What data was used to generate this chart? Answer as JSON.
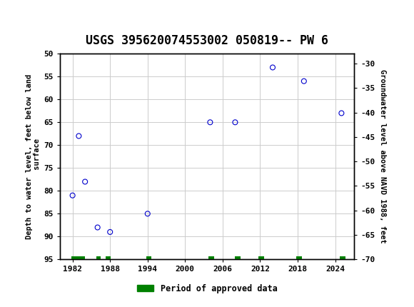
{
  "title": "USGS 395620074553002 050819-- PW 6",
  "ylabel_left": "Depth to water level, feet below land\n surface",
  "ylabel_right": "Groundwater level above NAVD 1988, feet",
  "scatter_x": [
    1982,
    1983,
    1984,
    1986,
    1988,
    1994,
    2004,
    2008,
    2014,
    2019,
    2025
  ],
  "scatter_y_depth": [
    81,
    68,
    78,
    88,
    89,
    85,
    65,
    65,
    53,
    56,
    63
  ],
  "ylim_left": [
    95,
    50
  ],
  "ylim_right": [
    -70,
    -28
  ],
  "xlim": [
    1980,
    2027
  ],
  "yticks_left": [
    50,
    55,
    60,
    65,
    70,
    75,
    80,
    85,
    90,
    95
  ],
  "yticks_right": [
    -30,
    -35,
    -40,
    -45,
    -50,
    -55,
    -60,
    -65,
    -70
  ],
  "xticks": [
    1982,
    1988,
    1994,
    2000,
    2006,
    2012,
    2018,
    2024
  ],
  "scatter_color": "#0000cc",
  "marker_size": 5,
  "grid_color": "#cccccc",
  "bg_color": "#ffffff",
  "header_color": "#006633",
  "legend_label": "Period of approved data",
  "legend_color": "#008000",
  "approved_data_segments": [
    [
      1982,
      1982.5
    ],
    [
      1982.7,
      1983.1
    ],
    [
      1983.4,
      1983.8
    ],
    [
      1986.0,
      1986.3
    ],
    [
      1987.5,
      1987.9
    ],
    [
      1994.0,
      1994.4
    ],
    [
      2004.0,
      2004.4
    ],
    [
      2008.2,
      2008.6
    ],
    [
      2012.0,
      2012.4
    ],
    [
      2018.0,
      2018.4
    ],
    [
      2025.0,
      2025.4
    ]
  ],
  "title_fontsize": 12
}
